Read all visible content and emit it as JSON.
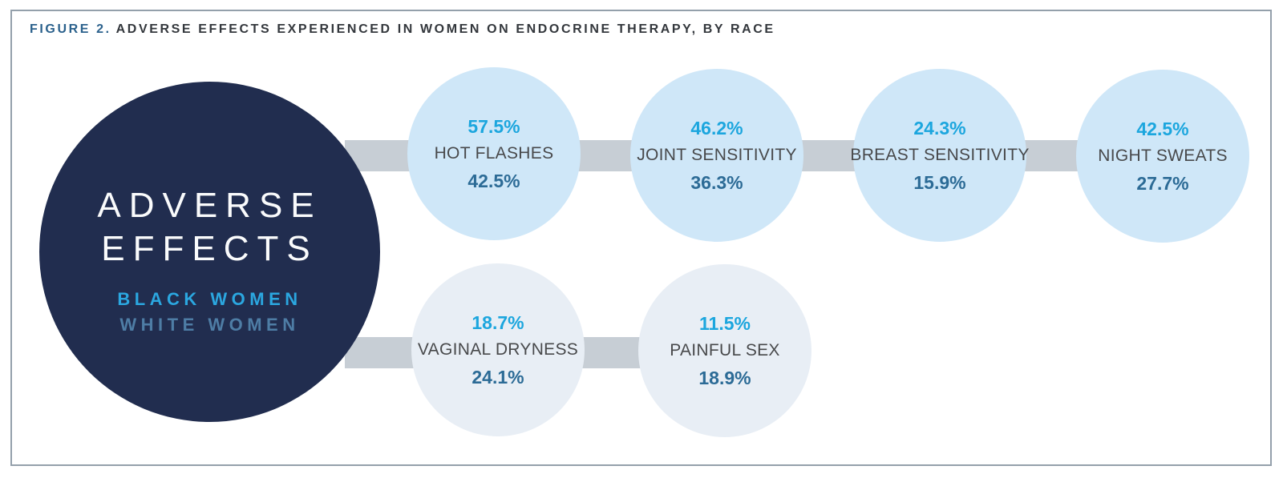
{
  "header": {
    "label": "FIGURE 2.",
    "title": "ADVERSE EFFECTS EXPERIENCED IN WOMEN ON ENDOCRINE THERAPY, BY RACE"
  },
  "hub": {
    "line1": "ADVERSE",
    "line2": "EFFECTS",
    "legend_black": "BLACK WOMEN",
    "legend_white": "WHITE WOMEN"
  },
  "colors": {
    "hub_background": "#212d4f",
    "black_women_accent": "#1ca6de",
    "white_women_accent": "#2c6b96",
    "legend_black": "#2ba7e0",
    "legend_white": "#4e7da5",
    "circle_top_row": "#cfe7f8",
    "circle_bottom_row": "#e8eef5",
    "connector_bar": "#c7ced5",
    "figure_label": "#2b618c",
    "panel_border": "#94a0ab"
  },
  "circles": [
    {
      "label": "HOT FLASHES",
      "black_pct": "57.5%",
      "white_pct": "42.5%"
    },
    {
      "label": "JOINT SENSITIVITY",
      "black_pct": "46.2%",
      "white_pct": "36.3%"
    },
    {
      "label": "BREAST SENSITIVITY",
      "black_pct": "24.3%",
      "white_pct": "15.9%"
    },
    {
      "label": "NIGHT SWEATS",
      "black_pct": "42.5%",
      "white_pct": "27.7%"
    },
    {
      "label": "VAGINAL DRYNESS",
      "black_pct": "18.7%",
      "white_pct": "24.1%"
    },
    {
      "label": "PAINFUL SEX",
      "black_pct": "11.5%",
      "white_pct": "18.9%"
    }
  ],
  "chart_data": {
    "type": "bar",
    "rendered_as": "circle infographic, two rows (4 circles top, 2 bottom) linked by gray connector bars to a navy hub circle",
    "title": "FIGURE 2. ADVERSE EFFECTS EXPERIENCED IN WOMEN ON ENDOCRINE THERAPY, BY RACE",
    "categories": [
      "HOT FLASHES",
      "JOINT SENSITIVITY",
      "BREAST SENSITIVITY",
      "NIGHT SWEATS",
      "VAGINAL DRYNESS",
      "PAINFUL SEX"
    ],
    "series": [
      {
        "name": "BLACK WOMEN",
        "color": "#1ca6de",
        "values": [
          57.5,
          46.2,
          24.3,
          42.5,
          18.7,
          11.5
        ]
      },
      {
        "name": "WHITE WOMEN",
        "color": "#2c6b96",
        "values": [
          42.5,
          36.3,
          15.9,
          27.7,
          24.1,
          18.9
        ]
      }
    ],
    "unit": "%",
    "legend_position": "inside hub circle, below title",
    "grid": false,
    "axes": false
  }
}
